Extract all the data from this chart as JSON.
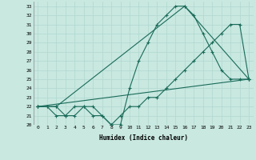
{
  "xlabel": "Humidex (Indice chaleur)",
  "background_color": "#c8e8e0",
  "line_color": "#1a6b5a",
  "grid_color": "#b0d8d0",
  "xlim": [
    -0.5,
    23.5
  ],
  "ylim": [
    20,
    33.5
  ],
  "xticks": [
    0,
    1,
    2,
    3,
    4,
    5,
    6,
    7,
    8,
    9,
    10,
    11,
    12,
    13,
    14,
    15,
    16,
    17,
    18,
    19,
    20,
    21,
    22,
    23
  ],
  "yticks": [
    20,
    21,
    22,
    23,
    24,
    25,
    26,
    27,
    28,
    29,
    30,
    31,
    32,
    33
  ],
  "series": [
    {
      "x": [
        0,
        1,
        2,
        3,
        4,
        5,
        6,
        7,
        8,
        9,
        10,
        11,
        12,
        13,
        14,
        15,
        16,
        17,
        18,
        19,
        20,
        21,
        22,
        23
      ],
      "y": [
        22,
        22,
        22,
        21,
        21,
        22,
        22,
        21,
        20,
        20,
        24,
        27,
        29,
        31,
        32,
        33,
        33,
        32,
        30,
        28,
        26,
        25,
        25,
        25
      ]
    },
    {
      "x": [
        0,
        1,
        2,
        3,
        4,
        5,
        6,
        7,
        8,
        9,
        10,
        11,
        12,
        13,
        14,
        15,
        16,
        17,
        18,
        19,
        20,
        21,
        22,
        23
      ],
      "y": [
        22,
        22,
        21,
        21,
        22,
        22,
        21,
        21,
        20,
        21,
        22,
        22,
        23,
        23,
        24,
        25,
        26,
        27,
        28,
        29,
        30,
        31,
        31,
        25
      ]
    },
    {
      "x": [
        0,
        2,
        16,
        23
      ],
      "y": [
        22,
        22,
        33,
        25
      ]
    },
    {
      "x": [
        0,
        23
      ],
      "y": [
        22,
        25
      ]
    }
  ]
}
